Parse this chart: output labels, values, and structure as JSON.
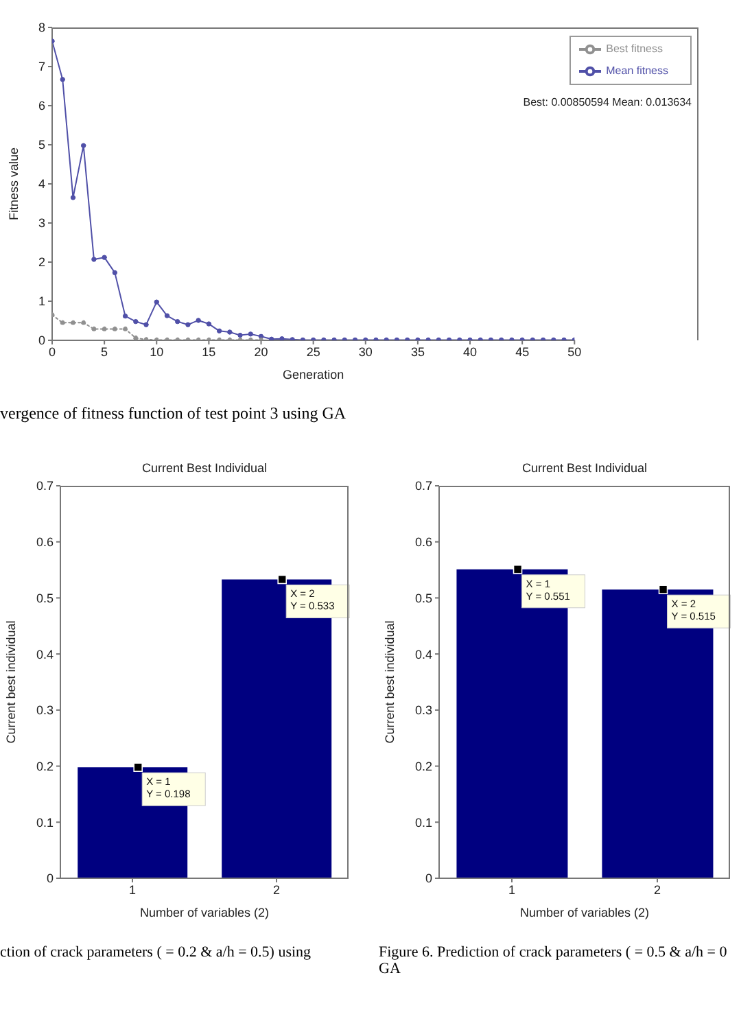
{
  "chart_data": [
    {
      "type": "line",
      "xlabel": "Generation",
      "ylabel": "Fitness value",
      "x": [
        0,
        1,
        2,
        3,
        4,
        5,
        6,
        7,
        8,
        9,
        10,
        11,
        12,
        13,
        14,
        15,
        16,
        17,
        18,
        19,
        20,
        21,
        22,
        23,
        24,
        25,
        26,
        27,
        28,
        29,
        30,
        31,
        32,
        33,
        34,
        35,
        36,
        37,
        38,
        39,
        40,
        41,
        42,
        43,
        44,
        45,
        46,
        47,
        48,
        49,
        50
      ],
      "series": [
        {
          "name": "Best fitness",
          "color": "#909090",
          "line_style": "dotted",
          "values": [
            0.65,
            0.45,
            0.45,
            0.45,
            0.29,
            0.29,
            0.29,
            0.29,
            0.06,
            0.02,
            0.01,
            0.01,
            0.01,
            0.01,
            0.01,
            0.01,
            0.01,
            0.01,
            0.01,
            0.01,
            0.01,
            null,
            null,
            null,
            null,
            null,
            null,
            null,
            null,
            null,
            null,
            null,
            null,
            null,
            null,
            null,
            null,
            null,
            null,
            null,
            null,
            null,
            null,
            null,
            null,
            null,
            null,
            null,
            null,
            null,
            null
          ]
        },
        {
          "name": "Mean fitness",
          "color": "#5050a8",
          "line_style": "solid",
          "values": [
            7.65,
            6.67,
            3.65,
            4.98,
            2.07,
            2.12,
            1.73,
            0.62,
            0.48,
            0.4,
            0.98,
            0.63,
            0.48,
            0.4,
            0.51,
            0.42,
            0.24,
            0.21,
            0.13,
            0.16,
            0.1,
            0.03,
            0.04,
            0.02,
            0.01,
            0.01,
            0.01,
            0.01,
            0.01,
            0.01,
            0.01,
            0.01,
            0.01,
            0.01,
            0.01,
            0.01,
            0.01,
            0.01,
            0.01,
            0.01,
            0.01,
            0.01,
            0.01,
            0.01,
            0.01,
            0.01,
            0.01,
            0.01,
            0.01,
            0.01,
            0.01
          ]
        }
      ],
      "xlim": [
        0,
        50
      ],
      "xticks": [
        0,
        5,
        10,
        15,
        20,
        25,
        30,
        35,
        40,
        45,
        50
      ],
      "ylim": [
        0,
        8
      ],
      "yticks": [
        0,
        1,
        2,
        3,
        4,
        5,
        6,
        7,
        8
      ],
      "marker": "circle",
      "legend": "top right",
      "annotations": [
        "Best: 0.00850594 Mean: 0.013634",
        "vergence of fitness function of test point 3 using GA"
      ]
    },
    {
      "type": "bar",
      "title": "Current Best Individual",
      "xlabel": "Number of variables (2)",
      "ylabel": "Current best individual",
      "categories": [
        "1",
        "2"
      ],
      "values": [
        0.198,
        0.533
      ],
      "color": "#000080",
      "ylim": [
        0,
        0.7
      ],
      "yticks": [
        0,
        0.1,
        0.2,
        0.3,
        0.4,
        0.5,
        0.6,
        0.7
      ],
      "value_labels": [
        "X = 1\nY = 0.198",
        "X = 2\nY = 0.533"
      ],
      "annotations": [
        "ction of crack parameters (  = 0.2 & a/h = 0.5) using"
      ]
    },
    {
      "type": "bar",
      "title": "Current Best Individual",
      "xlabel": "Number of variables (2)",
      "ylabel": "Current best individual",
      "categories": [
        "1",
        "2"
      ],
      "values": [
        0.551,
        0.515
      ],
      "color": "#000080",
      "ylim": [
        0,
        0.7
      ],
      "yticks": [
        0,
        0.1,
        0.2,
        0.3,
        0.4,
        0.5,
        0.6,
        0.7
      ],
      "value_labels": [
        "X = 1\nY = 0.551",
        "X = 2\nY = 0.515"
      ],
      "annotations": [
        "Figure 6. Prediction of crack parameters (  = 0.5 & a/h = 0\nGA"
      ]
    }
  ]
}
